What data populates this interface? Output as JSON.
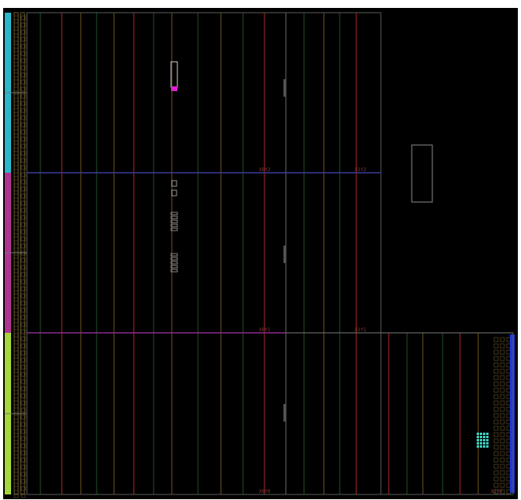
{
  "colors": {
    "background": "#000000",
    "region_border": "#5a5a5a",
    "column_red": "#5a1414",
    "column_brown": "#3a2a0e",
    "column_green": "#0f2a12",
    "io_tile": "#6a5a2a",
    "bank_cyan": "#2ab7c9",
    "bank_magenta": "#b0348f",
    "bank_lime": "#a6d63a",
    "bank_blue": "#2436d8",
    "row_magenta": "#8a2a8a",
    "row_blue": "#3a3a9a",
    "clock_label": "#8a3a3a",
    "selected_cell": "#e020d0",
    "cell_outline": "#cfcfcf",
    "teal_cells": "#3ad0c0"
  },
  "clock_regions": [
    {
      "label": "X0Y2"
    },
    {
      "label": "X1Y2"
    },
    {
      "label": "X0Y1"
    },
    {
      "label": "X1Y1"
    },
    {
      "label": "X0Y0"
    },
    {
      "label": "X1Y0"
    }
  ],
  "icons": {
    "selection": "selection-rectangle-icon",
    "pblock": "pblock-rectangle-icon"
  }
}
